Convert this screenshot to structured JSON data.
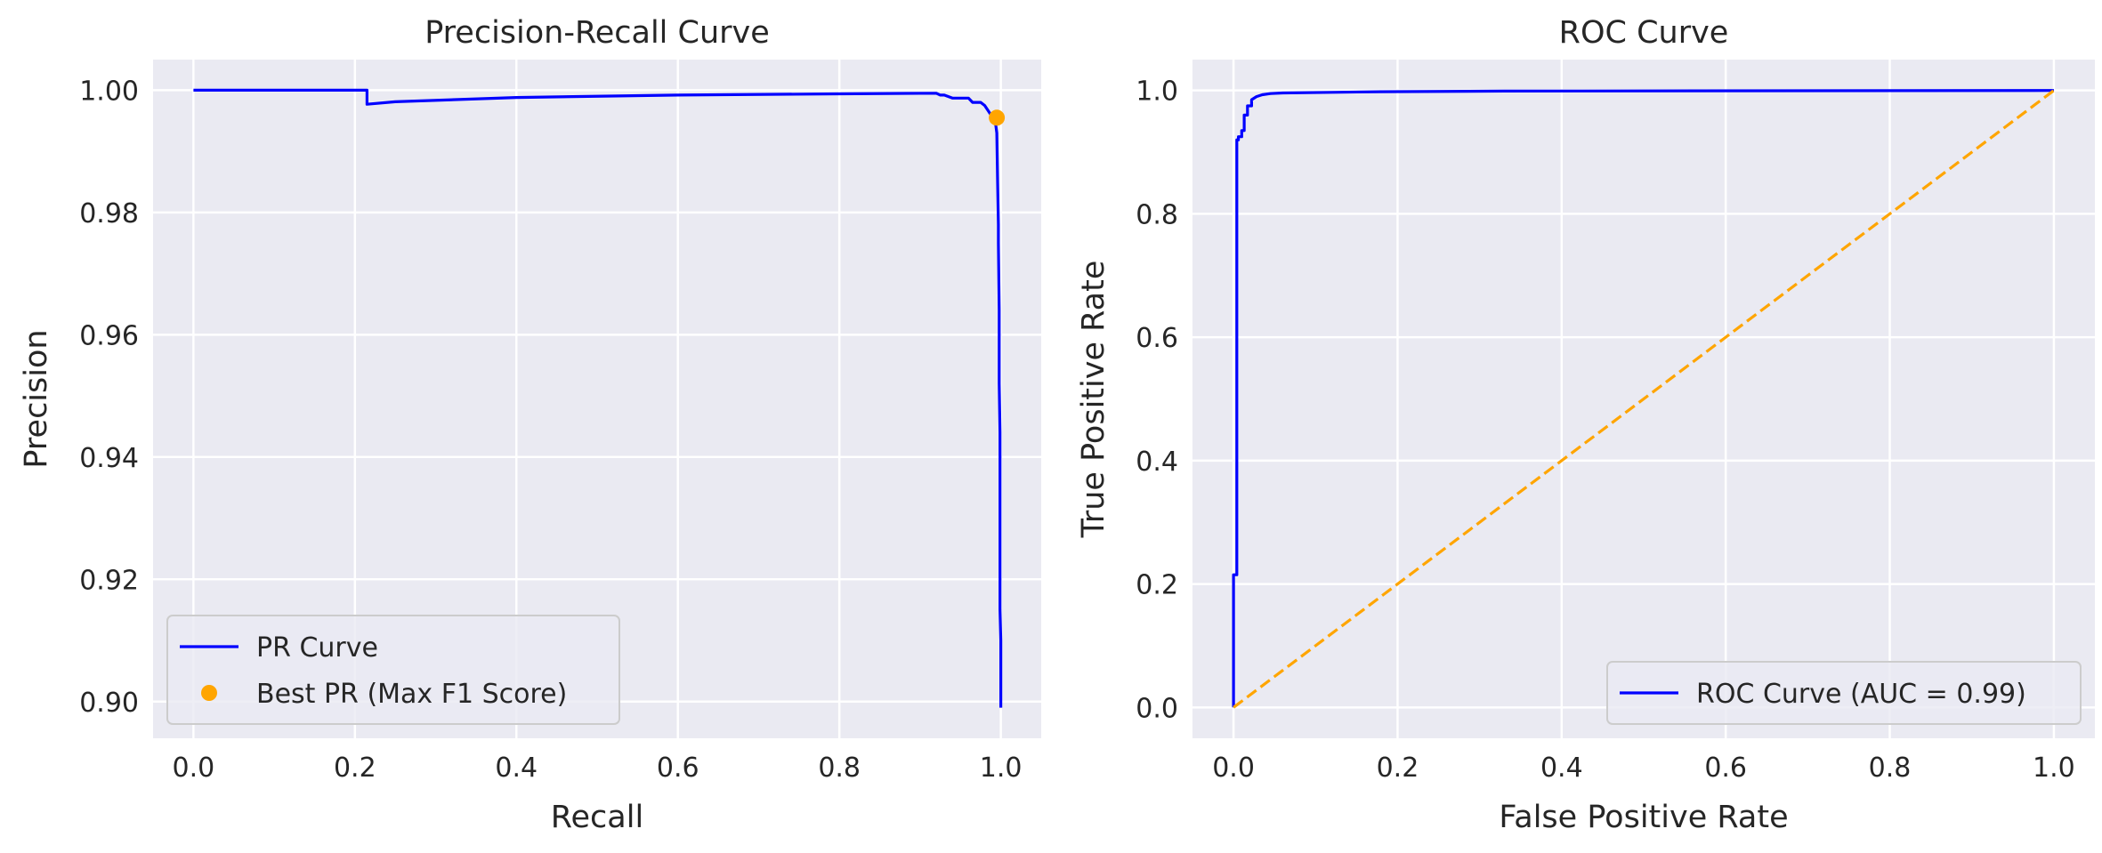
{
  "chart_data": [
    {
      "type": "line",
      "title": "Precision-Recall Curve",
      "xlabel": "Recall",
      "ylabel": "Precision",
      "xlim": [
        -0.05,
        1.05
      ],
      "ylim": [
        0.894,
        1.005
      ],
      "xticks": [
        0.0,
        0.2,
        0.4,
        0.6,
        0.8,
        1.0
      ],
      "xtick_labels": [
        "0.0",
        "0.2",
        "0.4",
        "0.6",
        "0.8",
        "1.0"
      ],
      "yticks": [
        0.9,
        0.92,
        0.94,
        0.96,
        0.98,
        1.0
      ],
      "ytick_labels": [
        "0.90",
        "0.92",
        "0.94",
        "0.96",
        "0.98",
        "1.00"
      ],
      "grid": true,
      "legend_position": "lower-left",
      "series": [
        {
          "name": "PR Curve",
          "kind": "step-line",
          "color": "#0000ff",
          "x": [
            0.0,
            0.215,
            0.215,
            0.25,
            0.4,
            0.6,
            0.8,
            0.92,
            0.925,
            0.93,
            0.94,
            0.96,
            0.965,
            0.975,
            0.98,
            0.985,
            0.99,
            0.993,
            0.995,
            0.996,
            0.997,
            0.997,
            0.998,
            0.998,
            0.999,
            0.999,
            1.0,
            1.0
          ],
          "y": [
            1.0,
            1.0,
            0.9977,
            0.9981,
            0.9988,
            0.9992,
            0.9994,
            0.9995,
            0.9992,
            0.9992,
            0.9987,
            0.9987,
            0.998,
            0.998,
            0.9975,
            0.9965,
            0.9955,
            0.995,
            0.993,
            0.985,
            0.978,
            0.975,
            0.964,
            0.952,
            0.944,
            0.915,
            0.91,
            0.899
          ]
        },
        {
          "name": "Best PR (Max F1 Score)",
          "kind": "scatter",
          "color": "#ffa500",
          "x": [
            0.995
          ],
          "y": [
            0.9955
          ]
        }
      ]
    },
    {
      "type": "line",
      "title": "ROC Curve",
      "xlabel": "False Positive Rate",
      "ylabel": "True Positive Rate",
      "xlim": [
        -0.05,
        1.05
      ],
      "ylim": [
        -0.05,
        1.05
      ],
      "xticks": [
        0.0,
        0.2,
        0.4,
        0.6,
        0.8,
        1.0
      ],
      "xtick_labels": [
        "0.0",
        "0.2",
        "0.4",
        "0.6",
        "0.8",
        "1.0"
      ],
      "yticks": [
        0.0,
        0.2,
        0.4,
        0.6,
        0.8,
        1.0
      ],
      "ytick_labels": [
        "0.0",
        "0.2",
        "0.4",
        "0.6",
        "0.8",
        "1.0"
      ],
      "grid": true,
      "legend_position": "lower-right",
      "series": [
        {
          "name": "ROC Curve (AUC = 0.99)",
          "kind": "step-line",
          "color": "#0000ff",
          "x": [
            0.0,
            0.0,
            0.004,
            0.004,
            0.006,
            0.006,
            0.01,
            0.01,
            0.013,
            0.013,
            0.017,
            0.017,
            0.022,
            0.022,
            0.028,
            0.035,
            0.045,
            0.06,
            0.12,
            0.18,
            0.33,
            1.0
          ],
          "y": [
            0.0,
            0.215,
            0.215,
            0.92,
            0.92,
            0.925,
            0.925,
            0.935,
            0.935,
            0.96,
            0.96,
            0.975,
            0.975,
            0.985,
            0.99,
            0.993,
            0.995,
            0.996,
            0.997,
            0.998,
            0.999,
            1.0
          ]
        },
        {
          "name": "",
          "kind": "dashed-line",
          "color": "#ffa500",
          "x": [
            0.0,
            1.0
          ],
          "y": [
            0.0,
            1.0
          ]
        }
      ]
    }
  ]
}
